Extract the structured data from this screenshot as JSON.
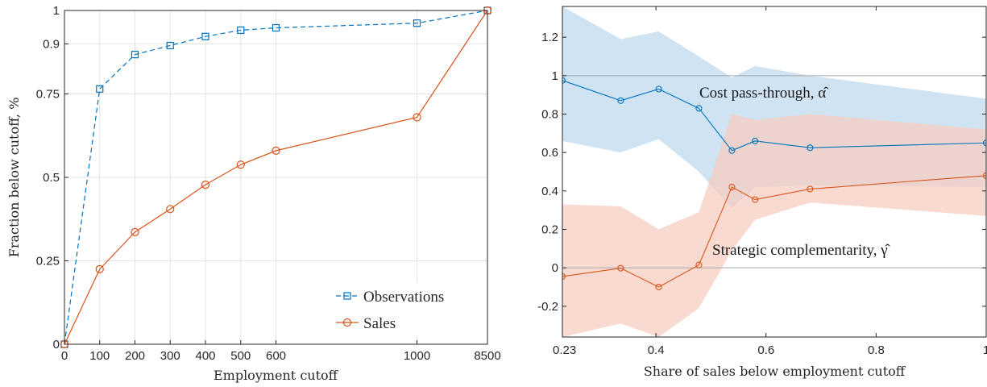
{
  "chart_data": [
    {
      "type": "line",
      "xlabel": "Employment cutoff",
      "ylabel": "Fraction below cutoff, %",
      "categories": [
        "0",
        "100",
        "200",
        "300",
        "400",
        "500",
        "600",
        "1000",
        "8500"
      ],
      "x_positions": [
        0,
        100,
        200,
        300,
        400,
        500,
        600,
        1000,
        1200
      ],
      "xlim": [
        0,
        1200
      ],
      "ylim": [
        0,
        1
      ],
      "yticks": [
        0,
        0.25,
        0.5,
        0.75,
        0.9,
        1
      ],
      "ytick_labels": [
        "0",
        "0.25",
        "0.5",
        "0.75",
        "0.9",
        "1"
      ],
      "grid": true,
      "legend_position": "bottom-right",
      "series": [
        {
          "name": "Observations",
          "values": [
            0,
            0.765,
            0.868,
            0.895,
            0.922,
            0.941,
            0.948,
            0.962,
            1.0
          ],
          "color": "#0072BD",
          "dash": true,
          "marker": "square"
        },
        {
          "name": "Sales",
          "values": [
            0,
            0.225,
            0.336,
            0.405,
            0.478,
            0.538,
            0.58,
            0.68,
            1.0
          ],
          "color": "#D95319",
          "dash": false,
          "marker": "circle"
        }
      ]
    },
    {
      "type": "line",
      "xlabel": "Share of sales below employment cutoff",
      "ylabel": "",
      "xlim": [
        0.23,
        1
      ],
      "ylim": [
        -0.36,
        1.36
      ],
      "xticks": [
        0.23,
        0.4,
        0.6,
        0.8,
        1
      ],
      "xtick_labels": [
        "0.23",
        "0.4",
        "0.6",
        "0.8",
        "1"
      ],
      "yticks": [
        -0.2,
        0,
        0.2,
        0.4,
        0.6,
        0.8,
        1,
        1.2
      ],
      "ytick_labels": [
        "-0.2",
        "0",
        "0.2",
        "0.4",
        "0.6",
        "0.8",
        "1",
        "1.2"
      ],
      "hlines": [
        0,
        1
      ],
      "x": [
        0.23,
        0.336,
        0.405,
        0.478,
        0.538,
        0.58,
        0.68,
        1.0
      ],
      "series": [
        {
          "name": "Cost pass-through, α̂",
          "values": [
            0.975,
            0.87,
            0.93,
            0.83,
            0.61,
            0.66,
            0.625,
            0.65
          ],
          "lower": [
            0.66,
            0.6,
            0.67,
            0.5,
            0.31,
            0.42,
            0.43,
            0.42
          ],
          "upper": [
            1.36,
            1.19,
            1.23,
            1.1,
            0.99,
            1.05,
            1.0,
            0.88
          ],
          "color": "#0072BD",
          "band_color": "#BFD9EE"
        },
        {
          "name": "Strategic complementarity, γ̂",
          "values": [
            -0.045,
            -0.002,
            -0.1,
            0.015,
            0.42,
            0.355,
            0.41,
            0.48
          ],
          "lower": [
            -0.36,
            -0.29,
            -0.36,
            -0.21,
            0.09,
            0.25,
            0.34,
            0.27
          ],
          "upper": [
            0.33,
            0.32,
            0.2,
            0.29,
            0.8,
            0.77,
            0.8,
            0.72
          ],
          "color": "#D95319",
          "band_color": "#F5CEC0"
        }
      ],
      "annotations": [
        "Cost pass-through, α̂",
        "Strategic complementarity, γ̂"
      ]
    }
  ]
}
